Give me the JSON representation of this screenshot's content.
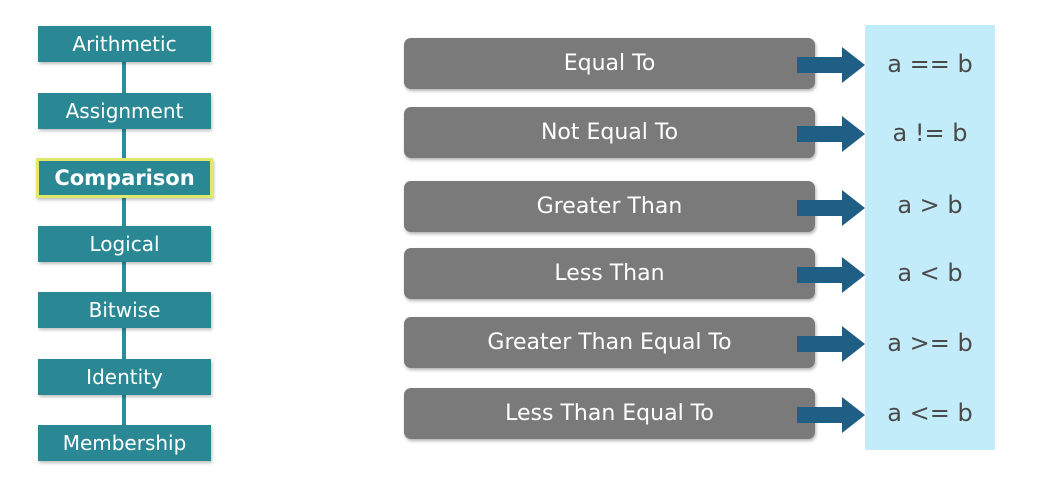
{
  "nav": {
    "items": [
      {
        "label": "Arithmetic",
        "active": false
      },
      {
        "label": "Assignment",
        "active": false
      },
      {
        "label": "Comparison",
        "active": true
      },
      {
        "label": "Logical",
        "active": false
      },
      {
        "label": "Bitwise",
        "active": false
      },
      {
        "label": "Identity",
        "active": false
      },
      {
        "label": "Membership",
        "active": false
      }
    ]
  },
  "operators": {
    "rows": [
      {
        "name": "Equal To",
        "expression": "a == b"
      },
      {
        "name": "Not Equal To",
        "expression": "a != b"
      },
      {
        "name": "Greater Than",
        "expression": "a > b"
      },
      {
        "name": "Less Than",
        "expression": "a < b"
      },
      {
        "name": "Greater Than Equal To",
        "expression": "a >= b"
      },
      {
        "name": "Less Than Equal To",
        "expression": "a <= b"
      }
    ]
  },
  "colors": {
    "nav_fill": "#2a8894",
    "nav_active_border": "#dfe86a",
    "row_fill": "#7a7a7a",
    "arrow_fill": "#1f5f85",
    "panel_fill": "#c3ecfb"
  }
}
